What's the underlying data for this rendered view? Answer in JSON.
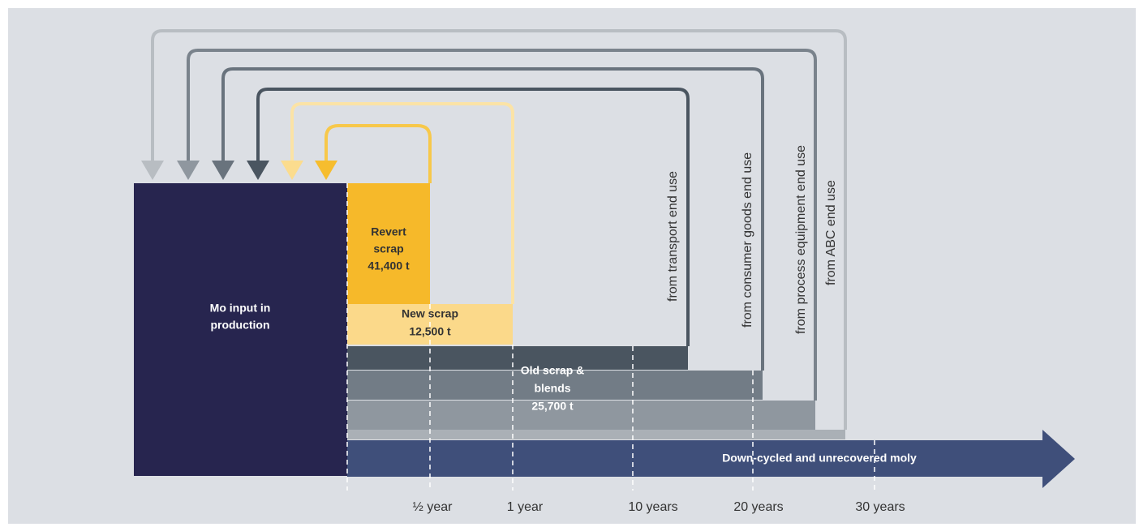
{
  "blocks": {
    "input": [
      "Mo input in",
      "production"
    ],
    "revert": [
      "Revert",
      "scrap",
      "41,400 t"
    ],
    "new": [
      "New scrap",
      "12,500 t"
    ],
    "old": [
      "Old scrap &",
      "blends",
      "25,700 t"
    ],
    "downcycled": "Down-cycled and unrecovered moly"
  },
  "loops": [
    "from transport end use",
    "from consumer goods end use",
    "from process equipment end use",
    "from ABC end use"
  ],
  "timeline": [
    "½ year",
    "1 year",
    "10 years",
    "20 years",
    "30 years"
  ]
}
